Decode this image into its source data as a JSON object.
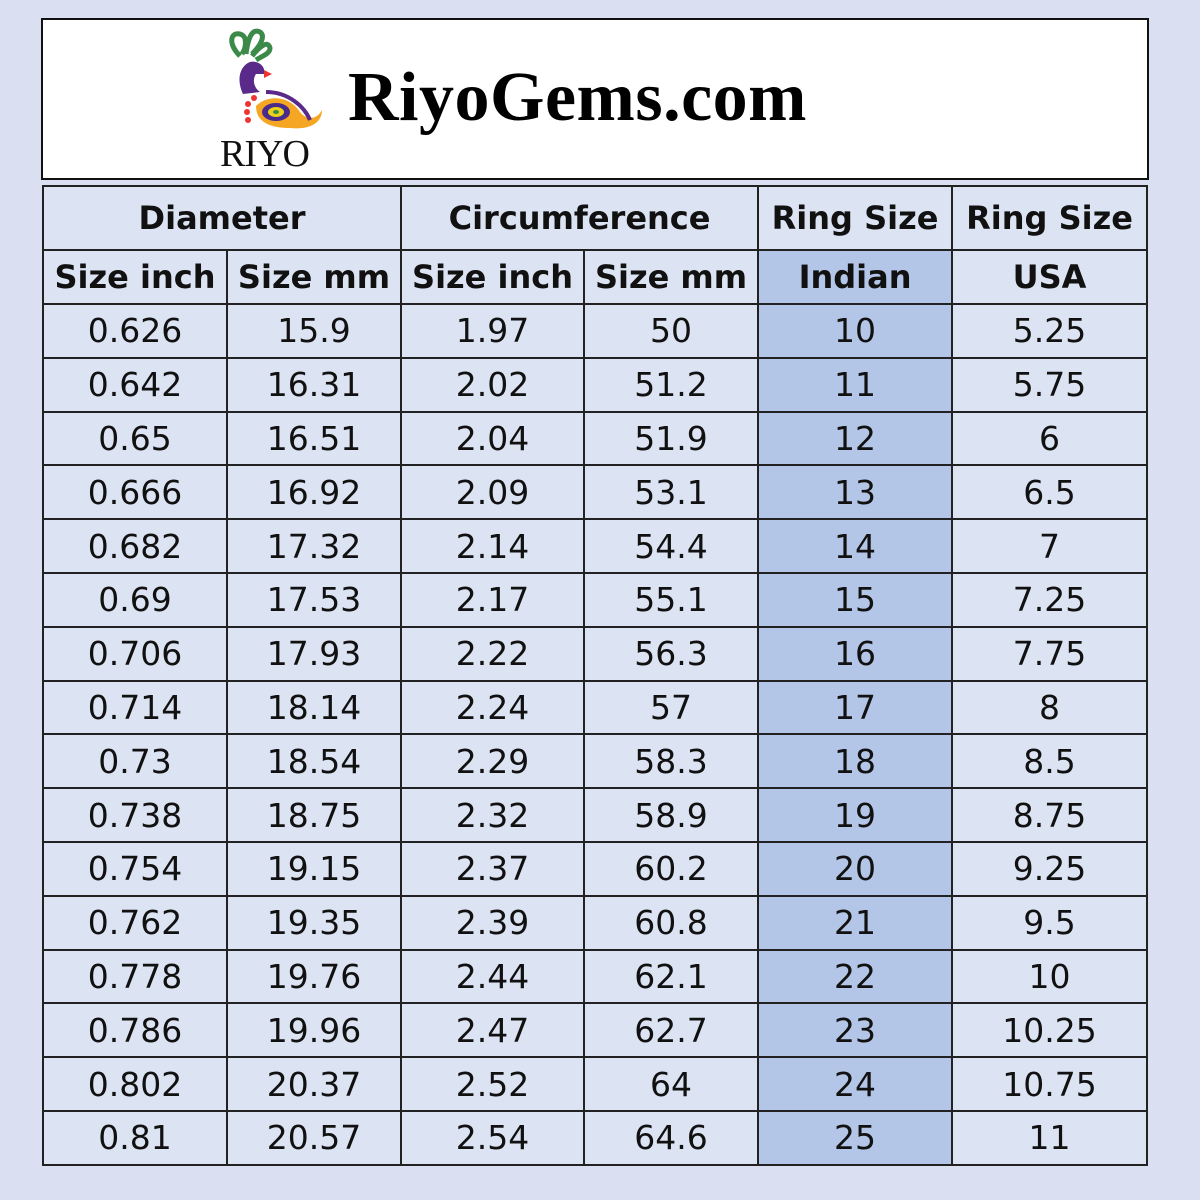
{
  "brand": {
    "logo_text": "RIYO",
    "site_name": "RiyoGems.com"
  },
  "colors": {
    "background": "#dae0f1",
    "cell": "#dce3f2",
    "highlight_column": "#b4c6e7"
  },
  "table": {
    "group_headers": [
      "Diameter",
      "Circumference",
      "Ring Size",
      "Ring Size"
    ],
    "sub_headers": [
      "Size inch",
      "Size mm",
      "Size inch",
      "Size mm",
      "Indian",
      "USA"
    ],
    "rows": [
      [
        "0.626",
        "15.9",
        "1.97",
        "50",
        "10",
        "5.25"
      ],
      [
        "0.642",
        "16.31",
        "2.02",
        "51.2",
        "11",
        "5.75"
      ],
      [
        "0.65",
        "16.51",
        "2.04",
        "51.9",
        "12",
        "6"
      ],
      [
        "0.666",
        "16.92",
        "2.09",
        "53.1",
        "13",
        "6.5"
      ],
      [
        "0.682",
        "17.32",
        "2.14",
        "54.4",
        "14",
        "7"
      ],
      [
        "0.69",
        "17.53",
        "2.17",
        "55.1",
        "15",
        "7.25"
      ],
      [
        "0.706",
        "17.93",
        "2.22",
        "56.3",
        "16",
        "7.75"
      ],
      [
        "0.714",
        "18.14",
        "2.24",
        "57",
        "17",
        "8"
      ],
      [
        "0.73",
        "18.54",
        "2.29",
        "58.3",
        "18",
        "8.5"
      ],
      [
        "0.738",
        "18.75",
        "2.32",
        "58.9",
        "19",
        "8.75"
      ],
      [
        "0.754",
        "19.15",
        "2.37",
        "60.2",
        "20",
        "9.25"
      ],
      [
        "0.762",
        "19.35",
        "2.39",
        "60.8",
        "21",
        "9.5"
      ],
      [
        "0.778",
        "19.76",
        "2.44",
        "62.1",
        "22",
        "10"
      ],
      [
        "0.786",
        "19.96",
        "2.47",
        "62.7",
        "23",
        "10.25"
      ],
      [
        "0.802",
        "20.37",
        "2.52",
        "64",
        "24",
        "10.75"
      ],
      [
        "0.81",
        "20.57",
        "2.54",
        "64.6",
        "25",
        "11"
      ]
    ]
  }
}
